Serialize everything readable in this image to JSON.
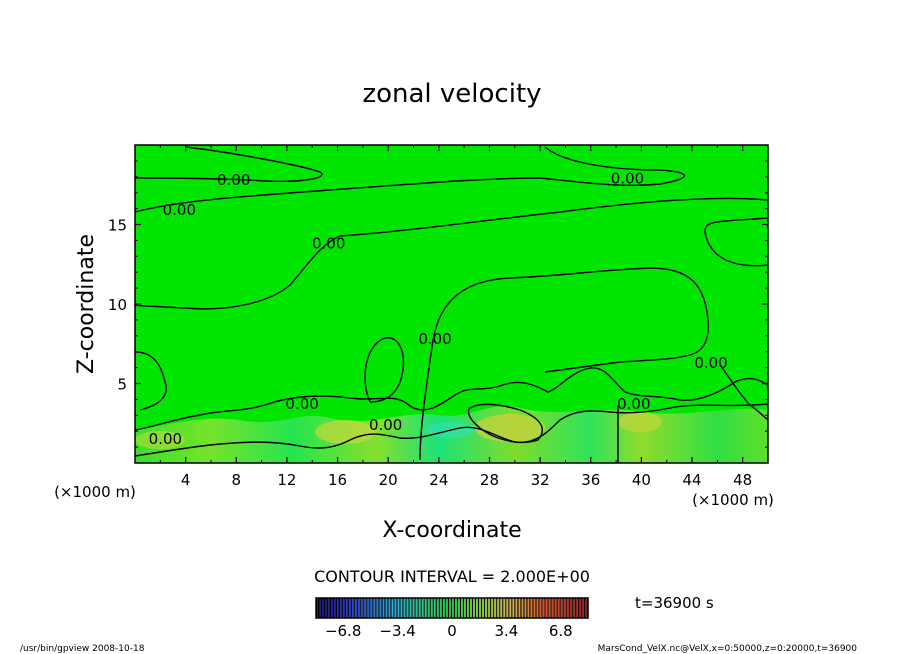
{
  "chart_data": {
    "type": "contour",
    "title": "zonal velocity",
    "xlabel": "X-coordinate",
    "ylabel": "Z-coordinate",
    "x_unit": "(×1000 m)",
    "y_unit": "(×1000 m)",
    "xlim": [
      0,
      50
    ],
    "ylim": [
      0,
      20
    ],
    "x_ticks": [
      4,
      8,
      12,
      16,
      20,
      24,
      28,
      32,
      36,
      40,
      44,
      48
    ],
    "y_ticks": [
      5,
      10,
      15
    ],
    "contour_interval_label": "CONTOUR INTERVAL = 2.000E+00",
    "contour_labels": [
      {
        "text": "0.00",
        "x": 7.8,
        "y": 17.8
      },
      {
        "text": "0.00",
        "x": 38.9,
        "y": 17.9
      },
      {
        "text": "0.00",
        "x": 3.5,
        "y": 15.9
      },
      {
        "text": "0.00",
        "x": 15.3,
        "y": 13.8
      },
      {
        "text": "0.00",
        "x": 23.7,
        "y": 7.8
      },
      {
        "text": "0.00",
        "x": 45.5,
        "y": 6.3
      },
      {
        "text": "0.00",
        "x": 13.2,
        "y": 3.7
      },
      {
        "text": "0.00",
        "x": 39.4,
        "y": 3.7
      },
      {
        "text": "0.00",
        "x": 19.8,
        "y": 2.4
      },
      {
        "text": "0.00",
        "x": 2.4,
        "y": 1.5
      }
    ],
    "colorbar": {
      "min": -8.5,
      "max": 8.5,
      "tick_labels": [
        "−6.8",
        "−3.4",
        "0",
        "3.4",
        "6.8"
      ],
      "tick_values": [
        -6.8,
        -3.4,
        0,
        3.4,
        6.8
      ]
    },
    "time_label": "t=36900 s",
    "footer_left": "/usr/bin/gpview   2008-10-18",
    "footer_right": "MarsCond_VelX.nc@VelX,x=0:50000,z=0:20000,t=36900"
  }
}
